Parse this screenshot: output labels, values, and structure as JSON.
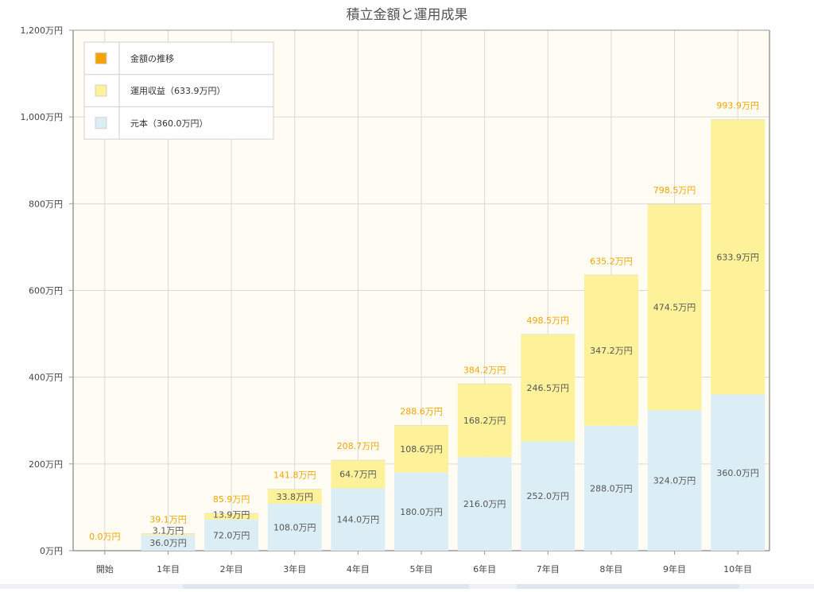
{
  "chart_data": {
    "type": "bar",
    "stacked": true,
    "title": "積立金額と運用成果",
    "categories": [
      "開始",
      "1年目",
      "2年目",
      "3年目",
      "4年目",
      "5年目",
      "6年目",
      "7年目",
      "8年目",
      "9年目",
      "10年目"
    ],
    "series": [
      {
        "name": "元本（360.0万円）",
        "color": "#dceef5",
        "values": [
          0,
          36.0,
          72.0,
          108.0,
          144.0,
          180.0,
          216.0,
          252.0,
          288.0,
          324.0,
          360.0
        ],
        "labels": [
          "",
          "36.0万円",
          "72.0万円",
          "108.0万円",
          "144.0万円",
          "180.0万円",
          "216.0万円",
          "252.0万円",
          "288.0万円",
          "324.0万円",
          "360.0万円"
        ]
      },
      {
        "name": "運用収益（633.9万円）",
        "color": "#fdf29a",
        "values": [
          0,
          3.1,
          13.9,
          33.8,
          64.7,
          108.6,
          168.2,
          246.5,
          347.2,
          474.5,
          633.9
        ],
        "labels": [
          "",
          "3.1万円",
          "13.9万円",
          "33.8万円",
          "64.7万円",
          "108.6万円",
          "168.2万円",
          "246.5万円",
          "347.2万円",
          "474.5万円",
          "633.9万円"
        ]
      }
    ],
    "totals": {
      "name": "金額の推移",
      "color": "#f5a300",
      "values": [
        0.0,
        39.1,
        85.9,
        141.8,
        208.7,
        288.6,
        384.2,
        498.5,
        635.2,
        798.5,
        993.9
      ],
      "labels": [
        "0.0万円",
        "39.1万円",
        "85.9万円",
        "141.8万円",
        "208.7万円",
        "288.6万円",
        "384.2万円",
        "498.5万円",
        "635.2万円",
        "798.5万円",
        "993.9万円"
      ]
    },
    "ylim": [
      0,
      1200
    ],
    "yticks": [
      0,
      200,
      400,
      600,
      800,
      1000,
      1200
    ],
    "ytick_labels": [
      "0万円",
      "200万円",
      "400万円",
      "600万円",
      "800万円",
      "1,000万円",
      "1,200万円"
    ],
    "grid": true,
    "legend_position": "top-left",
    "legend": [
      {
        "label": "金額の推移",
        "color": "#f5a300"
      },
      {
        "label": "運用収益（633.9万円）",
        "color": "#fdf29a"
      },
      {
        "label": "元本（360.0万円）",
        "color": "#dceef5"
      }
    ],
    "colors": {
      "plot_background": "#fffdf3",
      "grid": "#d8d8d8",
      "axis": "#9a9a9a",
      "total_label": "#f5a300",
      "segment_label": "#555555",
      "title": "#555555"
    }
  }
}
